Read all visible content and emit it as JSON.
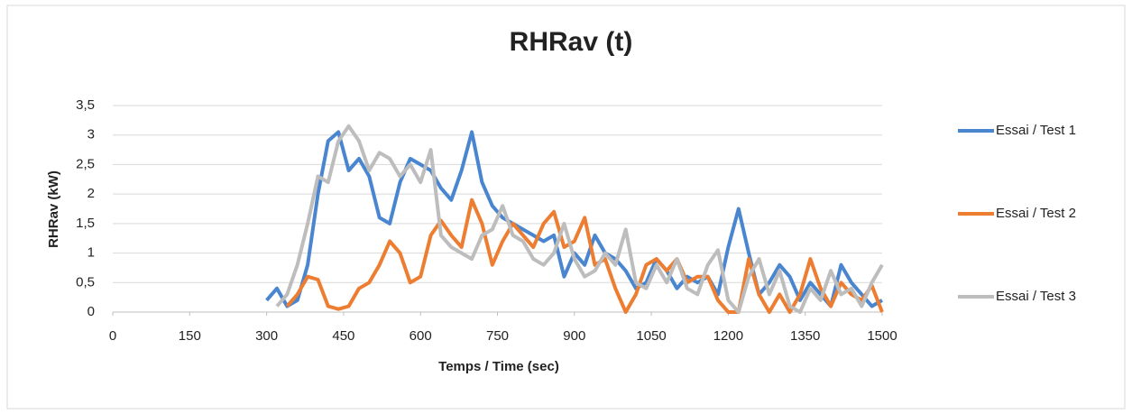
{
  "chart_data": {
    "type": "line",
    "title": "RHRav (t)",
    "x_label": "Temps / Time (sec)",
    "y_label": "RHRav (kW)",
    "xlim": [
      0,
      1500
    ],
    "xticks": [
      0,
      150,
      300,
      450,
      600,
      750,
      900,
      1050,
      1200,
      1350,
      1500
    ],
    "ylim": [
      0,
      3.5
    ],
    "yticks": [
      0,
      {
        "value": 0.5,
        "label": "0,5"
      },
      1,
      {
        "value": 1.5,
        "label": "1,5"
      },
      2,
      {
        "value": 2.5,
        "label": "2,5"
      },
      3,
      {
        "value": 3.5,
        "label": "3,5"
      }
    ],
    "grid": true,
    "legend": "right",
    "x": [
      300,
      320,
      340,
      360,
      380,
      400,
      420,
      440,
      460,
      480,
      500,
      520,
      540,
      560,
      580,
      600,
      620,
      640,
      660,
      680,
      700,
      720,
      740,
      760,
      780,
      800,
      820,
      840,
      860,
      880,
      900,
      920,
      940,
      960,
      980,
      1000,
      1020,
      1040,
      1060,
      1080,
      1100,
      1120,
      1140,
      1160,
      1180,
      1200,
      1220,
      1240,
      1260,
      1280,
      1300,
      1320,
      1340,
      1360,
      1380,
      1400,
      1420,
      1440,
      1460,
      1480,
      1500
    ],
    "series": [
      {
        "name": "Essai / Test 1",
        "color": "#4a86cf",
        "values": [
          0.2,
          0.4,
          0.1,
          0.2,
          0.8,
          2.0,
          2.9,
          3.05,
          2.4,
          2.6,
          2.3,
          1.6,
          1.5,
          2.2,
          2.6,
          2.5,
          2.4,
          2.1,
          1.9,
          2.4,
          3.05,
          2.2,
          1.8,
          1.6,
          1.5,
          1.4,
          1.3,
          1.2,
          1.3,
          0.6,
          1.0,
          0.8,
          1.3,
          1.0,
          0.9,
          0.7,
          0.4,
          0.5,
          0.9,
          0.7,
          0.4,
          0.6,
          0.5,
          0.6,
          0.3,
          1.1,
          1.75,
          1.0,
          0.3,
          0.5,
          0.8,
          0.6,
          0.2,
          0.5,
          0.3,
          0.1,
          0.8,
          0.5,
          0.3,
          0.1,
          0.2
        ]
      },
      {
        "name": "Essai / Test 2",
        "color": "#ed7d31",
        "values": [
          null,
          null,
          0.1,
          0.3,
          0.6,
          0.55,
          0.1,
          0.05,
          0.1,
          0.4,
          0.5,
          0.8,
          1.2,
          1.0,
          0.5,
          0.6,
          1.3,
          1.55,
          1.3,
          1.1,
          1.9,
          1.5,
          0.8,
          1.2,
          1.5,
          1.3,
          1.1,
          1.5,
          1.7,
          1.1,
          1.2,
          1.6,
          0.8,
          0.9,
          0.4,
          0.0,
          0.3,
          0.8,
          0.9,
          0.7,
          0.9,
          0.5,
          0.6,
          0.6,
          0.2,
          0.0,
          0.0,
          0.9,
          0.3,
          0.0,
          0.3,
          0.0,
          0.3,
          0.9,
          0.4,
          0.1,
          0.5,
          0.3,
          0.2,
          0.45,
          0.0
        ]
      },
      {
        "name": "Essai / Test 3",
        "color": "#bdbdbd",
        "values": [
          null,
          0.1,
          0.3,
          0.8,
          1.5,
          2.3,
          2.2,
          2.9,
          3.15,
          2.9,
          2.4,
          2.7,
          2.6,
          2.3,
          2.5,
          2.2,
          2.75,
          1.3,
          1.1,
          1.0,
          0.9,
          1.3,
          1.4,
          1.8,
          1.3,
          1.2,
          0.9,
          0.8,
          1.0,
          1.5,
          0.9,
          0.6,
          0.7,
          1.0,
          0.8,
          1.4,
          0.5,
          0.4,
          0.8,
          0.5,
          0.9,
          0.4,
          0.3,
          0.8,
          1.05,
          0.2,
          0.0,
          0.6,
          0.9,
          0.3,
          0.7,
          0.1,
          0.0,
          0.4,
          0.2,
          0.7,
          0.3,
          0.4,
          0.1,
          0.5,
          0.8
        ]
      }
    ]
  }
}
